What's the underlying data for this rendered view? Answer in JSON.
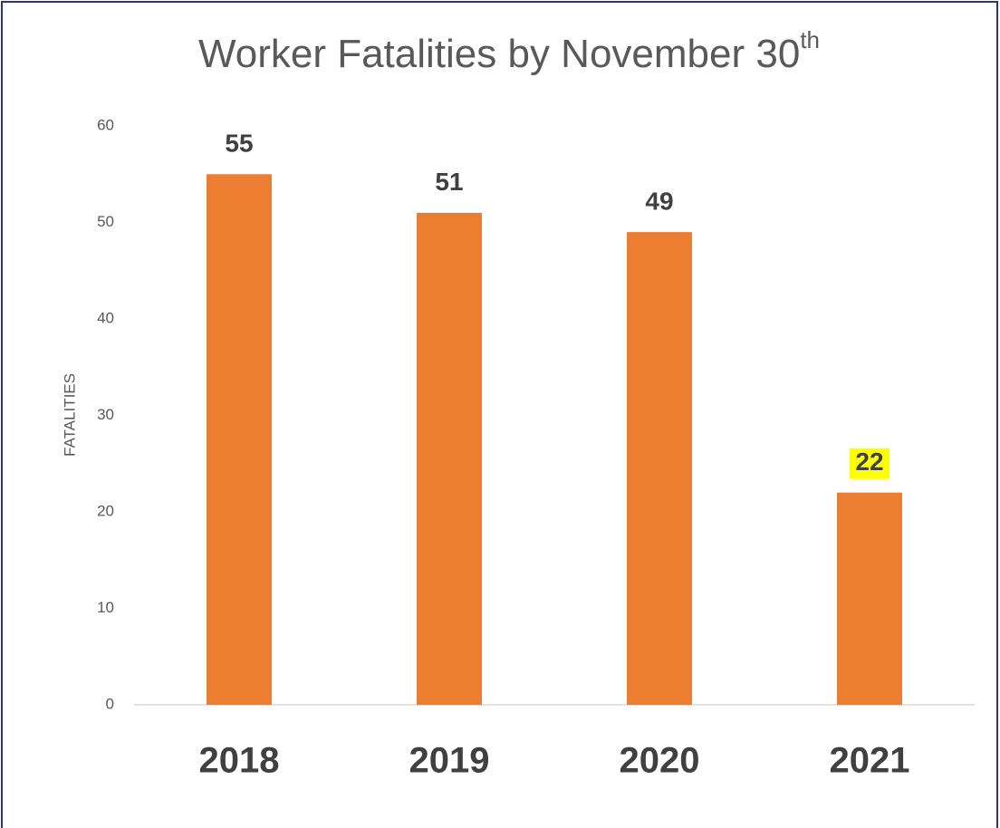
{
  "chart_data": {
    "type": "bar",
    "title": {
      "text": "Worker Fatalities by November 30",
      "superscript": "th"
    },
    "y_axis_label": "FATALITIES",
    "categories": [
      "2018",
      "2019",
      "2020",
      "2021"
    ],
    "values": [
      55,
      51,
      49,
      22
    ],
    "color": "#ed7d31",
    "ylim": [
      0,
      60
    ],
    "yticks": [
      0,
      10,
      20,
      30,
      40,
      50,
      60
    ],
    "grid": false,
    "label_highlight": {
      "index": 3,
      "color": "#ffff00"
    }
  }
}
